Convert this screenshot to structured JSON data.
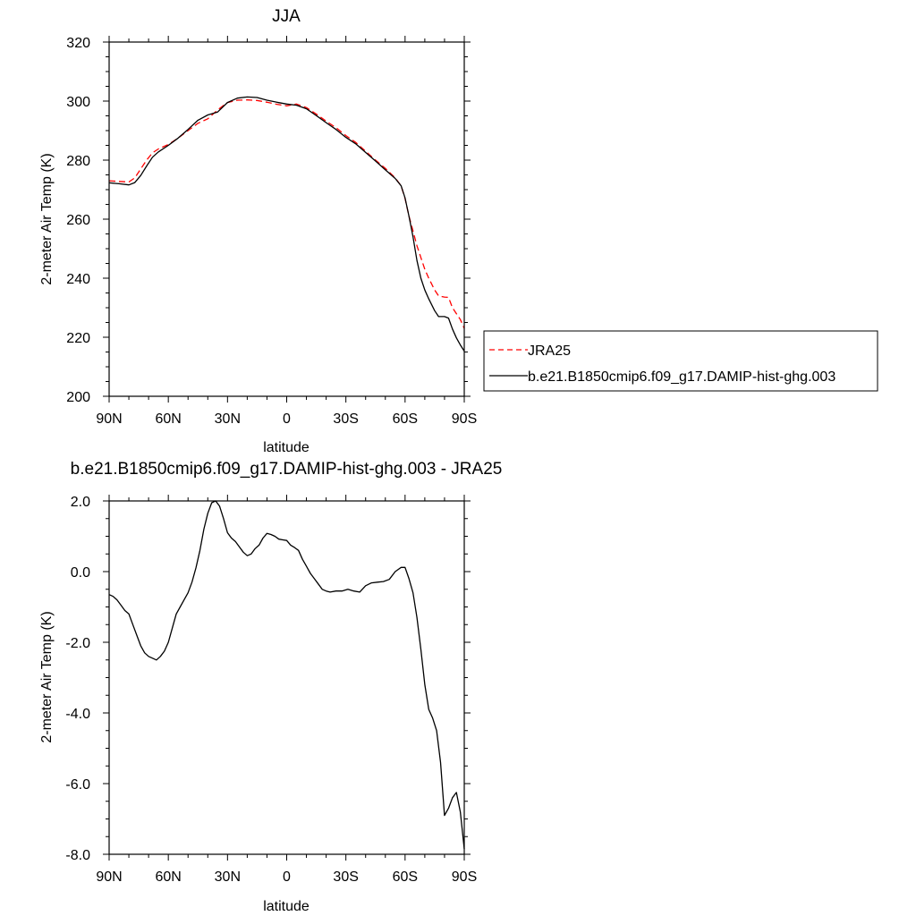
{
  "chart_data": [
    {
      "type": "line",
      "title": "JJA",
      "xlabel": "latitude",
      "ylabel": "2-meter Air Temp (K)",
      "xlim": [
        90,
        -90
      ],
      "ylim": [
        200,
        320
      ],
      "x_ticks": [
        90,
        60,
        30,
        0,
        -30,
        -60,
        -90
      ],
      "x_tick_labels": [
        "90N",
        "60N",
        "30N",
        "0",
        "30S",
        "60S",
        "90S"
      ],
      "y_ticks": [
        200,
        220,
        240,
        260,
        280,
        300,
        320
      ],
      "y_tick_labels": [
        "200",
        "220",
        "240",
        "260",
        "280",
        "300",
        "320"
      ],
      "legend_position": "right",
      "grid": false,
      "series": [
        {
          "name": "JRA25",
          "color": "#ff0000",
          "dash": "dashed",
          "x": [
            90,
            85,
            80,
            77,
            74,
            71,
            68,
            65,
            60,
            55,
            50,
            45,
            40,
            35,
            30,
            25,
            20,
            15,
            10,
            5,
            0,
            -5,
            -10,
            -15,
            -20,
            -25,
            -30,
            -35,
            -40,
            -45,
            -50,
            -55,
            -58,
            -60,
            -62,
            -64,
            -66,
            -68,
            -70,
            -72,
            -75,
            -77,
            -80,
            -82,
            -84,
            -86,
            -88,
            -90
          ],
          "values": [
            273.0,
            272.8,
            272.6,
            274.0,
            277.0,
            280.0,
            282.5,
            283.8,
            285.3,
            287.5,
            290.0,
            292.5,
            294.0,
            297.0,
            299.5,
            300.3,
            300.4,
            300.2,
            299.6,
            298.9,
            298.4,
            299.0,
            297.8,
            295.6,
            293.2,
            291.0,
            288.3,
            286.0,
            283.0,
            280.0,
            277.2,
            274.0,
            271.3,
            267.0,
            261.0,
            256.0,
            251.0,
            247.0,
            243.0,
            240.0,
            236.0,
            234.0,
            233.6,
            233.5,
            230.0,
            228.0,
            226.0,
            223.0
          ]
        },
        {
          "name": "b.e21.B1850cmip6.f09_g17.DAMIP-hist-ghg.003",
          "color": "#000000",
          "dash": "solid",
          "x": [
            90,
            85,
            80,
            77,
            74,
            71,
            68,
            65,
            60,
            55,
            50,
            45,
            40,
            35,
            30,
            25,
            20,
            15,
            10,
            5,
            0,
            -5,
            -10,
            -15,
            -20,
            -25,
            -30,
            -35,
            -40,
            -45,
            -50,
            -55,
            -58,
            -60,
            -62,
            -64,
            -66,
            -68,
            -70,
            -72,
            -75,
            -77,
            -80,
            -82,
            -84,
            -86,
            -88,
            -90
          ],
          "values": [
            272.3,
            272.0,
            271.6,
            272.4,
            274.8,
            278.0,
            281.0,
            282.8,
            285.0,
            287.5,
            290.4,
            293.5,
            295.3,
            296.3,
            299.5,
            301.0,
            301.4,
            301.2,
            300.3,
            299.6,
            299.0,
            298.6,
            297.4,
            295.1,
            292.7,
            290.4,
            287.7,
            285.5,
            282.6,
            279.7,
            276.7,
            273.8,
            271.3,
            267.2,
            261.0,
            254.0,
            246.0,
            240.0,
            236.0,
            233.0,
            229.0,
            227.0,
            227.0,
            226.5,
            222.8,
            219.8,
            217.4,
            215.3
          ]
        }
      ]
    },
    {
      "type": "line",
      "title": "b.e21.B1850cmip6.f09_g17.DAMIP-hist-ghg.003 - JRA25",
      "xlabel": "latitude",
      "ylabel": "2-meter Air Temp (K)",
      "xlim": [
        90,
        -90
      ],
      "ylim": [
        -8,
        2
      ],
      "x_ticks": [
        90,
        60,
        30,
        0,
        -30,
        -60,
        -90
      ],
      "x_tick_labels": [
        "90N",
        "60N",
        "30N",
        "0",
        "30S",
        "60S",
        "90S"
      ],
      "y_ticks": [
        -8,
        -6,
        -4,
        -2,
        0,
        2
      ],
      "y_tick_labels": [
        "-8.0",
        "-6.0",
        "-4.0",
        "-2.0",
        "0.0",
        "2.0"
      ],
      "grid": false,
      "series": [
        {
          "color": "#000000",
          "dash": "solid",
          "x": [
            90,
            88,
            86,
            84,
            82,
            80,
            78,
            76,
            74,
            72,
            70,
            68,
            66,
            64,
            62,
            60,
            58,
            56,
            54,
            52,
            50,
            48,
            46,
            44,
            42,
            40,
            38,
            36,
            34,
            32,
            30,
            28,
            26,
            24,
            22,
            20,
            18,
            16,
            14,
            12,
            10,
            8,
            6,
            4,
            2,
            0,
            -2,
            -4,
            -6,
            -8,
            -10,
            -12,
            -14,
            -16,
            -18,
            -20,
            -22,
            -25,
            -28,
            -31,
            -34,
            -37,
            -40,
            -43,
            -46,
            -49,
            -52,
            -55,
            -58,
            -60,
            -62,
            -64,
            -66,
            -68,
            -70,
            -72,
            -74,
            -76,
            -78,
            -80,
            -82,
            -84,
            -86,
            -88,
            -90
          ],
          "values": [
            -0.65,
            -0.7,
            -0.8,
            -0.95,
            -1.1,
            -1.2,
            -1.5,
            -1.8,
            -2.1,
            -2.3,
            -2.4,
            -2.45,
            -2.5,
            -2.4,
            -2.25,
            -2.0,
            -1.6,
            -1.2,
            -1.0,
            -0.8,
            -0.6,
            -0.3,
            0.1,
            0.6,
            1.2,
            1.65,
            1.95,
            2.0,
            1.85,
            1.5,
            1.1,
            0.95,
            0.85,
            0.7,
            0.55,
            0.45,
            0.5,
            0.65,
            0.75,
            0.95,
            1.08,
            1.05,
            1.0,
            0.92,
            0.9,
            0.88,
            0.75,
            0.68,
            0.6,
            0.35,
            0.15,
            -0.05,
            -0.2,
            -0.35,
            -0.5,
            -0.55,
            -0.58,
            -0.55,
            -0.55,
            -0.5,
            -0.55,
            -0.58,
            -0.4,
            -0.32,
            -0.3,
            -0.28,
            -0.22,
            0.0,
            0.12,
            0.12,
            -0.2,
            -0.6,
            -1.3,
            -2.2,
            -3.2,
            -3.9,
            -4.15,
            -4.5,
            -5.4,
            -6.9,
            -6.7,
            -6.4,
            -6.25,
            -6.8,
            -7.85
          ]
        }
      ]
    }
  ]
}
